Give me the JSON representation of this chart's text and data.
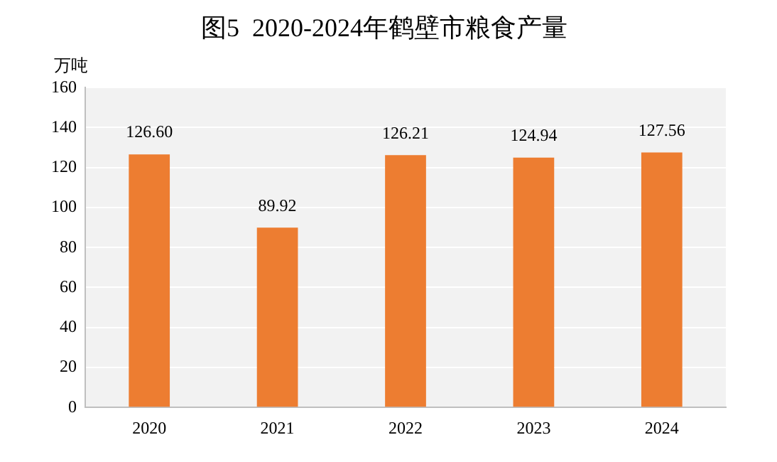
{
  "chart_data": {
    "type": "bar",
    "title": "图5  2020-2024年鹤壁市粮食产量",
    "ylabel": "万吨",
    "categories": [
      "2020",
      "2021",
      "2022",
      "2023",
      "2024"
    ],
    "values": [
      126.6,
      89.92,
      126.21,
      124.94,
      127.56
    ],
    "value_labels": [
      "126.60",
      "89.92",
      "126.21",
      "124.94",
      "127.56"
    ],
    "color": "#ed7d31",
    "ylim": [
      0,
      160
    ],
    "yticks": [
      0,
      20,
      40,
      60,
      80,
      100,
      120,
      140,
      160
    ],
    "grid": "y",
    "legend": false
  }
}
